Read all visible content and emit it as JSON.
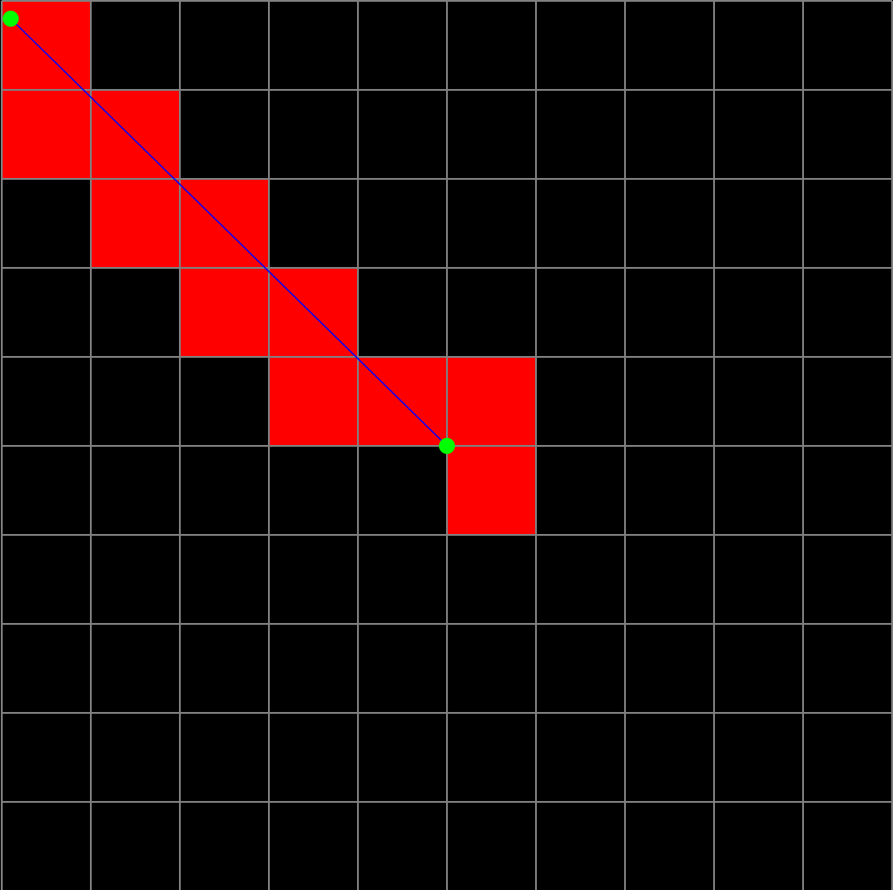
{
  "grid": {
    "columns": 10,
    "rows": 10,
    "background_color": "#000000",
    "line_color": "#808080"
  },
  "highlighted_cells": {
    "color": "#ff0000",
    "cells": [
      {
        "col": 0,
        "row": 0
      },
      {
        "col": 0,
        "row": 1
      },
      {
        "col": 1,
        "row": 1
      },
      {
        "col": 1,
        "row": 2
      },
      {
        "col": 2,
        "row": 2
      },
      {
        "col": 2,
        "row": 3
      },
      {
        "col": 3,
        "row": 3
      },
      {
        "col": 3,
        "row": 4
      },
      {
        "col": 4,
        "row": 4
      },
      {
        "col": 5,
        "row": 4
      },
      {
        "col": 5,
        "row": 5
      }
    ]
  },
  "segment": {
    "color": "#0000ff",
    "start": {
      "col": 0.1,
      "row": 0.2
    },
    "end": {
      "col": 5.0,
      "row": 5.0
    }
  },
  "endpoints": {
    "color": "#00ff00"
  }
}
